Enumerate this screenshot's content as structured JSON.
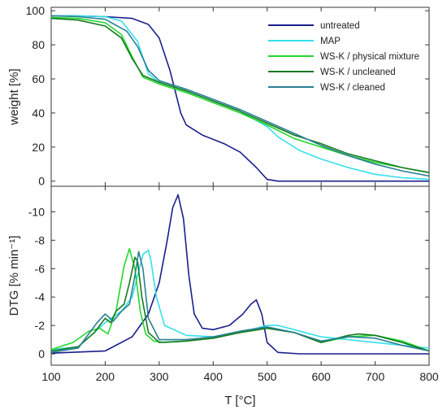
{
  "chart_data": [
    {
      "type": "line",
      "ylabel": "weight [%]",
      "xlim": [
        100,
        800
      ],
      "ylim": [
        -3,
        102
      ],
      "yticks": [
        "0",
        "20",
        "40",
        "60",
        "80",
        "100"
      ],
      "legend_position": "top-right",
      "series": [
        {
          "name": "untreated",
          "color": "#1a1f8c",
          "x": [
            100,
            150,
            200,
            250,
            280,
            300,
            320,
            340,
            350,
            380,
            420,
            450,
            480,
            500,
            520,
            560,
            600,
            700,
            800
          ],
          "y": [
            97,
            97,
            96.5,
            95.5,
            92,
            84,
            65,
            40,
            33,
            27,
            22,
            17,
            8,
            1,
            0,
            0,
            0,
            0,
            0
          ]
        },
        {
          "name": "MAP",
          "color": "#33e0ec",
          "x": [
            100,
            150,
            200,
            230,
            260,
            280,
            300,
            350,
            400,
            450,
            500,
            520,
            560,
            600,
            650,
            700,
            750,
            800
          ],
          "y": [
            97,
            97,
            96.5,
            94,
            82,
            63,
            58,
            53,
            47,
            41,
            32,
            26,
            18,
            13,
            8,
            4,
            2,
            1
          ]
        },
        {
          "name": "WS-K / physical mixture",
          "color": "#22d82a",
          "x": [
            100,
            150,
            200,
            230,
            250,
            270,
            300,
            350,
            400,
            450,
            500,
            550,
            600,
            650,
            700,
            750,
            800
          ],
          "y": [
            96,
            95.5,
            93,
            86,
            73,
            61,
            57,
            52,
            46,
            40,
            33,
            25,
            20,
            15,
            11,
            8,
            5
          ]
        },
        {
          "name": "WS-K / uncleaned",
          "color": "#157a22",
          "x": [
            100,
            150,
            200,
            230,
            250,
            270,
            300,
            350,
            400,
            450,
            500,
            550,
            600,
            650,
            700,
            750,
            800
          ],
          "y": [
            95.5,
            94.5,
            91,
            84,
            72,
            62,
            58,
            53,
            47,
            41,
            34,
            27,
            22,
            16,
            12,
            8,
            5
          ]
        },
        {
          "name": "WS-K / cleaned",
          "color": "#2a7f95",
          "x": [
            100,
            150,
            200,
            240,
            260,
            280,
            300,
            350,
            400,
            450,
            500,
            550,
            600,
            650,
            700,
            750,
            800
          ],
          "y": [
            97,
            96.5,
            95,
            88,
            79,
            65,
            59,
            54,
            48,
            42,
            35,
            28,
            21,
            15,
            10,
            6,
            3
          ]
        }
      ]
    },
    {
      "type": "line",
      "ylabel": "DTG [% min⁻¹]",
      "xlabel": "T [°C]",
      "xlim": [
        100,
        800
      ],
      "xticks": [
        "100",
        "200",
        "300",
        "400",
        "500",
        "600",
        "700",
        "800"
      ],
      "ylim": [
        0.8,
        -11.8
      ],
      "yticks": [
        "0",
        "-2",
        "-4",
        "-6",
        "-8",
        "-10"
      ],
      "series": [
        {
          "name": "untreated",
          "color": "#1a1f8c",
          "x": [
            100,
            200,
            250,
            280,
            300,
            315,
            325,
            335,
            345,
            355,
            365,
            380,
            400,
            430,
            455,
            470,
            480,
            490,
            500,
            520,
            560,
            600,
            700,
            800
          ],
          "y": [
            -0.05,
            -0.2,
            -1.2,
            -2.8,
            -5,
            -8,
            -10.3,
            -11.2,
            -9.5,
            -5.5,
            -2.8,
            -1.8,
            -1.7,
            -2,
            -2.8,
            -3.5,
            -3.8,
            -2.8,
            -0.8,
            -0.1,
            0,
            0,
            0,
            0
          ]
        },
        {
          "name": "MAP",
          "color": "#33e0ec",
          "x": [
            100,
            150,
            180,
            200,
            230,
            250,
            260,
            270,
            280,
            285,
            295,
            310,
            350,
            400,
            450,
            500,
            520,
            550,
            600,
            650,
            700,
            750,
            800
          ],
          "y": [
            -0.3,
            -0.5,
            -1.5,
            -2.2,
            -3,
            -4,
            -5.5,
            -7,
            -7.3,
            -6.5,
            -4,
            -2,
            -1.3,
            -1.2,
            -1.5,
            -2,
            -2,
            -1.7,
            -1.2,
            -1,
            -0.8,
            -0.6,
            -0.4
          ]
        },
        {
          "name": "WS-K / physical mixture",
          "color": "#22d82a",
          "x": [
            100,
            140,
            170,
            190,
            205,
            220,
            235,
            245,
            255,
            265,
            275,
            290,
            310,
            350,
            400,
            450,
            500,
            550,
            600,
            650,
            700,
            750,
            800
          ],
          "y": [
            -0.3,
            -0.8,
            -1.6,
            -1.8,
            -1.4,
            -3,
            -6.2,
            -7.4,
            -6,
            -3,
            -1.4,
            -0.9,
            -0.8,
            -0.9,
            -1.1,
            -1.5,
            -1.8,
            -1.5,
            -0.8,
            -1.2,
            -1.3,
            -0.9,
            -0.2
          ]
        },
        {
          "name": "WS-K / uncleaned",
          "color": "#157a22",
          "x": [
            100,
            150,
            180,
            200,
            210,
            220,
            235,
            245,
            255,
            260,
            268,
            280,
            300,
            350,
            400,
            450,
            500,
            550,
            600,
            650,
            670,
            700,
            750,
            800
          ],
          "y": [
            -0.2,
            -0.5,
            -1.5,
            -2.5,
            -2.2,
            -3,
            -3.5,
            -5,
            -6.8,
            -6.5,
            -4,
            -1.5,
            -0.8,
            -0.9,
            -1.1,
            -1.5,
            -1.8,
            -1.5,
            -0.8,
            -1.3,
            -1.4,
            -1.3,
            -0.8,
            -0.2
          ]
        },
        {
          "name": "WS-K / cleaned",
          "color": "#2a7f95",
          "x": [
            100,
            150,
            185,
            200,
            215,
            230,
            245,
            255,
            262,
            270,
            280,
            300,
            350,
            400,
            450,
            500,
            550,
            600,
            650,
            700,
            750,
            800
          ],
          "y": [
            -0.1,
            -0.4,
            -2.2,
            -2.8,
            -2.3,
            -3,
            -3.5,
            -5.5,
            -7.2,
            -6,
            -2.5,
            -1,
            -1,
            -1.2,
            -1.6,
            -1.9,
            -1.5,
            -0.9,
            -1.2,
            -1.1,
            -0.6,
            -0.2
          ]
        }
      ]
    }
  ]
}
